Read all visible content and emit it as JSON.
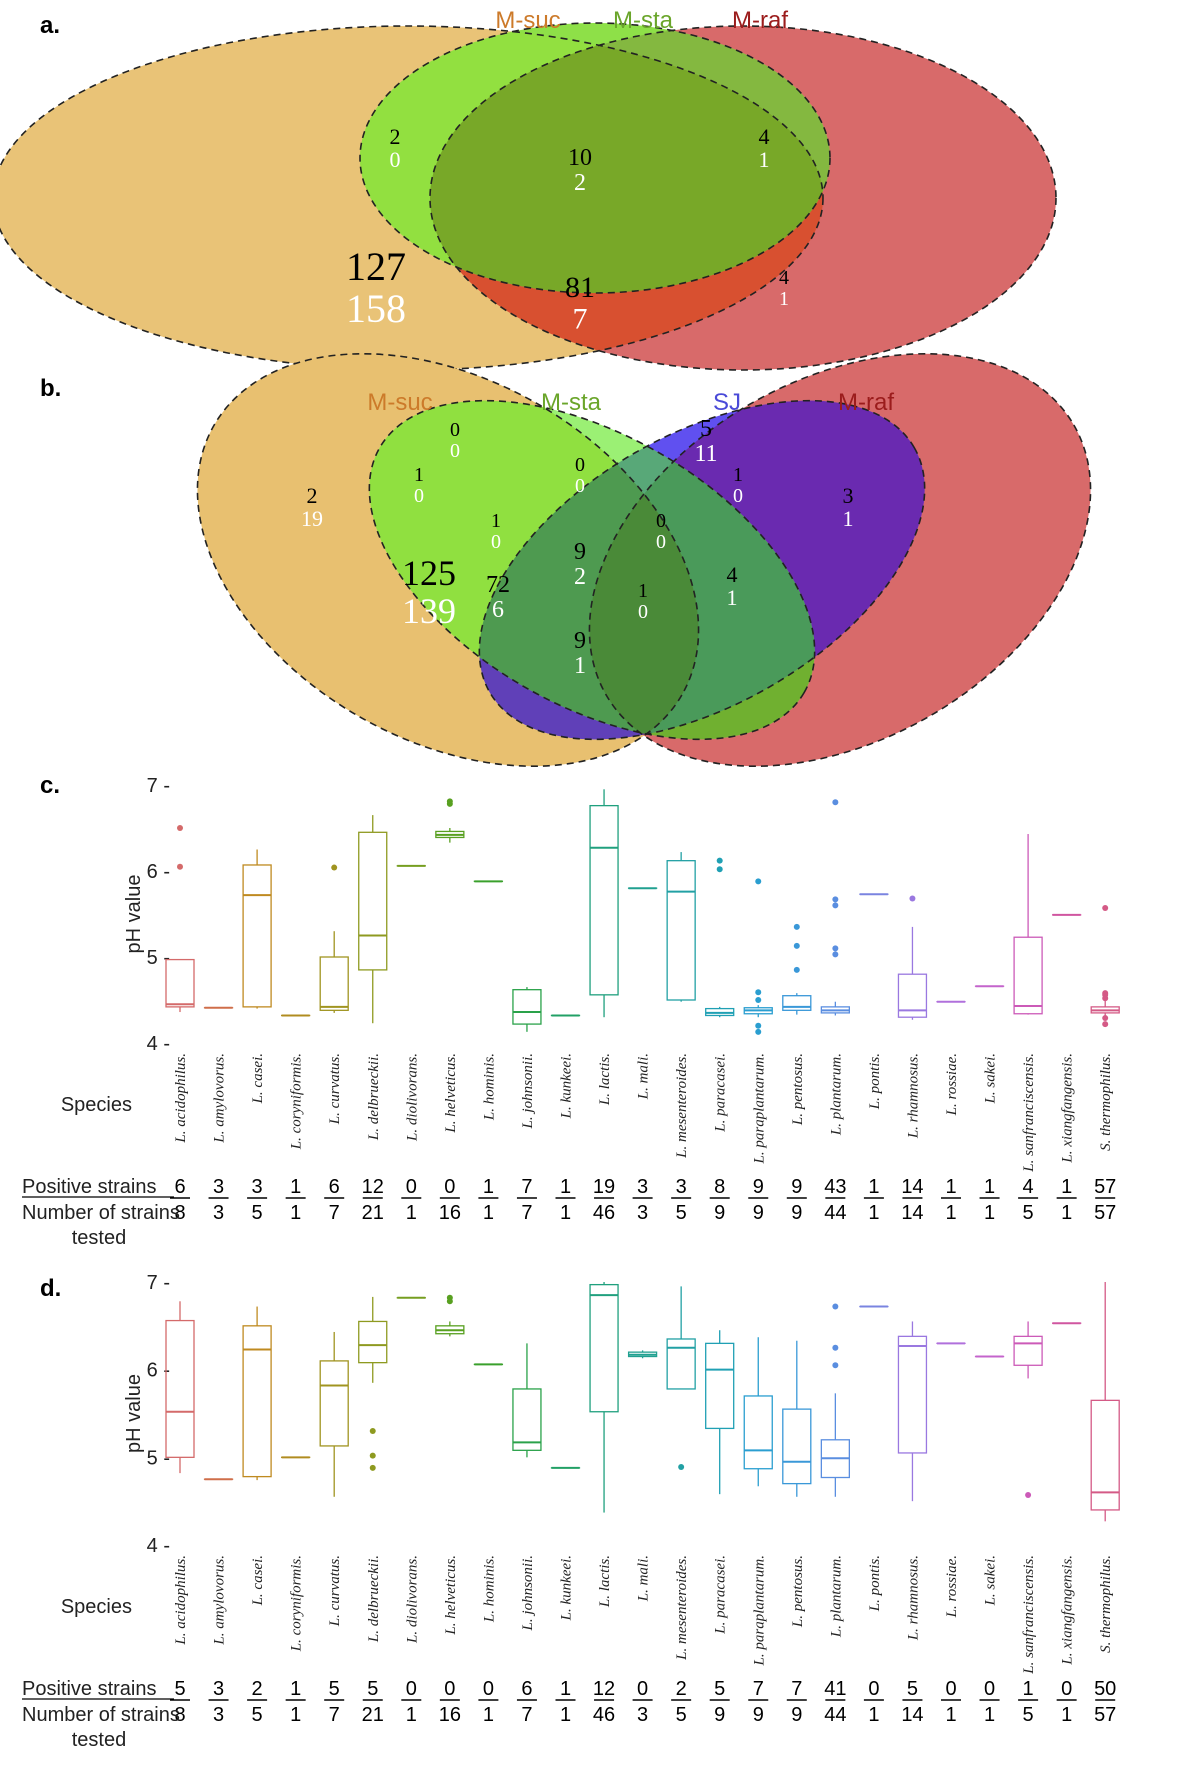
{
  "panels": {
    "a": "a.",
    "b": "b.",
    "c": "c.",
    "d": "d."
  },
  "colors": {
    "m_suc": "#cc7a2a",
    "m_sta": "#6aa52a",
    "m_raf": "#9b1c1c",
    "sj": "#4a4ad8",
    "venn_suc_fill": "#e8c070",
    "venn_sta_fill": "#7ee040",
    "venn_raf_fill": "#d86060",
    "venn_sj_fill": "#4040e8"
  },
  "venn_a": {
    "sets": [
      "M-suc",
      "M-sta",
      "M-raf"
    ],
    "regions": [
      {
        "id": "sta-only",
        "black": "2",
        "white": "0"
      },
      {
        "id": "suc-sta-raf",
        "black": "10",
        "white": "2"
      },
      {
        "id": "sta-raf",
        "black": "4",
        "white": "1"
      },
      {
        "id": "suc-only",
        "black": "127",
        "white": "158"
      },
      {
        "id": "suc-raf",
        "black": "81",
        "white": "7"
      },
      {
        "id": "raf-only",
        "black": "4",
        "white": "1"
      }
    ]
  },
  "venn_b": {
    "sets": [
      "M-suc",
      "M-sta",
      "SJ",
      "M-raf"
    ],
    "regions": [
      {
        "id": "sta-only",
        "black": "0",
        "white": "0"
      },
      {
        "id": "sj-only",
        "black": "5",
        "white": "11"
      },
      {
        "id": "suc-sta",
        "black": "1",
        "white": "0"
      },
      {
        "id": "sta-sj",
        "black": "0",
        "white": "0"
      },
      {
        "id": "sj-raf",
        "black": "1",
        "white": "0"
      },
      {
        "id": "suc-only",
        "black": "2",
        "white": "19"
      },
      {
        "id": "suc-sta-sj",
        "black": "1",
        "white": "0"
      },
      {
        "id": "sta-sj-raf",
        "black": "0",
        "white": "0"
      },
      {
        "id": "raf-only",
        "black": "3",
        "white": "1"
      },
      {
        "id": "suc-sj",
        "black": "125",
        "white": "139"
      },
      {
        "id": "suc-sj-raf",
        "black": "72",
        "white": "6"
      },
      {
        "id": "all",
        "black": "9",
        "white": "2"
      },
      {
        "id": "suc-sta-raf",
        "black": "1",
        "white": "0"
      },
      {
        "id": "sta-raf",
        "black": "4",
        "white": "1"
      },
      {
        "id": "suc-raf",
        "black": "9",
        "white": "1"
      }
    ]
  },
  "labels": {
    "ylabel": "pH value",
    "species": "Species",
    "positive": "Positive strains",
    "tested_1": "Number of strains",
    "tested_2": "tested"
  },
  "chart_data": [
    {
      "type": "box",
      "panel": "c",
      "ylabel": "pH value",
      "ylim": [
        4,
        7
      ],
      "yticks": [
        4,
        5,
        6,
        7
      ],
      "categories": [
        "L. acidophilus.",
        "L. amylovorus.",
        "L. casei.",
        "L. coryniformis.",
        "L. curvatus.",
        "L. delbrueckii.",
        "L. diolivorans.",
        "L. helveticus.",
        "L. hominis.",
        "L. johnsonii.",
        "L. kunkeei.",
        "L. lactis.",
        "L. mali.",
        "L. mesenteroides.",
        "L. paracasei.",
        "L. paraplantarum.",
        "L. pentosus.",
        "L. plantarum.",
        "L. pontis.",
        "L. rhamnosus.",
        "L. rossiae.",
        "L. sakei.",
        "L. sanfranciscensis.",
        "L. xiangfangensis.",
        "S. thermophilus."
      ],
      "series": [
        {
          "min": 4.36,
          "q1": 4.42,
          "median": 4.45,
          "q3": 4.97,
          "max": 4.97,
          "outliers": [
            6.05,
            6.5
          ]
        },
        {
          "min": 4.41,
          "q1": 4.41,
          "median": 4.41,
          "q3": 4.41,
          "max": 4.41,
          "outliers": []
        },
        {
          "min": 4.4,
          "q1": 4.42,
          "median": 5.72,
          "q3": 6.07,
          "max": 6.25,
          "outliers": []
        },
        {
          "min": 4.32,
          "q1": 4.32,
          "median": 4.32,
          "q3": 4.32,
          "max": 4.32,
          "outliers": []
        },
        {
          "min": 4.35,
          "q1": 4.38,
          "median": 4.42,
          "q3": 5.0,
          "max": 5.3,
          "outliers": [
            6.04
          ]
        },
        {
          "min": 4.23,
          "q1": 4.85,
          "median": 5.25,
          "q3": 6.45,
          "max": 6.65,
          "outliers": []
        },
        {
          "min": 6.06,
          "q1": 6.06,
          "median": 6.06,
          "q3": 6.06,
          "max": 6.06,
          "outliers": []
        },
        {
          "min": 6.33,
          "q1": 6.39,
          "median": 6.42,
          "q3": 6.46,
          "max": 6.5,
          "outliers": [
            6.78,
            6.81
          ]
        },
        {
          "min": 5.88,
          "q1": 5.88,
          "median": 5.88,
          "q3": 5.88,
          "max": 5.88,
          "outliers": []
        },
        {
          "min": 4.13,
          "q1": 4.22,
          "median": 4.36,
          "q3": 4.62,
          "max": 4.65,
          "outliers": []
        },
        {
          "min": 4.32,
          "q1": 4.32,
          "median": 4.32,
          "q3": 4.32,
          "max": 4.32,
          "outliers": []
        },
        {
          "min": 4.3,
          "q1": 4.56,
          "median": 6.27,
          "q3": 6.76,
          "max": 6.95,
          "outliers": []
        },
        {
          "min": 5.8,
          "q1": 5.8,
          "median": 5.8,
          "q3": 5.8,
          "max": 5.8,
          "outliers": []
        },
        {
          "min": 4.48,
          "q1": 4.5,
          "median": 5.76,
          "q3": 6.12,
          "max": 6.22,
          "outliers": []
        },
        {
          "min": 4.3,
          "q1": 4.32,
          "median": 4.35,
          "q3": 4.4,
          "max": 4.42,
          "outliers": [
            6.02,
            6.12
          ]
        },
        {
          "min": 4.3,
          "q1": 4.34,
          "median": 4.38,
          "q3": 4.41,
          "max": 4.44,
          "outliers": [
            4.13,
            4.2,
            4.5,
            4.59,
            5.88
          ]
        },
        {
          "min": 4.33,
          "q1": 4.38,
          "median": 4.42,
          "q3": 4.55,
          "max": 4.58,
          "outliers": [
            4.85,
            5.13,
            5.35
          ]
        },
        {
          "min": 4.32,
          "q1": 4.35,
          "median": 4.38,
          "q3": 4.42,
          "max": 4.48,
          "outliers": [
            5.03,
            5.1,
            5.6,
            5.67,
            6.8
          ]
        },
        {
          "min": 5.73,
          "q1": 5.73,
          "median": 5.73,
          "q3": 5.73,
          "max": 5.73,
          "outliers": []
        },
        {
          "min": 4.27,
          "q1": 4.3,
          "median": 4.38,
          "q3": 4.8,
          "max": 5.35,
          "outliers": [
            5.68
          ]
        },
        {
          "min": 4.48,
          "q1": 4.48,
          "median": 4.48,
          "q3": 4.48,
          "max": 4.48,
          "outliers": []
        },
        {
          "min": 4.66,
          "q1": 4.66,
          "median": 4.66,
          "q3": 4.66,
          "max": 4.66,
          "outliers": []
        },
        {
          "min": 4.33,
          "q1": 4.34,
          "median": 4.43,
          "q3": 5.23,
          "max": 6.43,
          "outliers": []
        },
        {
          "min": 5.49,
          "q1": 5.49,
          "median": 5.49,
          "q3": 5.49,
          "max": 5.49,
          "outliers": []
        },
        {
          "min": 4.32,
          "q1": 4.35,
          "median": 4.38,
          "q3": 4.42,
          "max": 4.5,
          "outliers": [
            4.22,
            4.29,
            4.52,
            4.56,
            4.58,
            5.57
          ]
        }
      ],
      "positive": [
        "6",
        "3",
        "3",
        "1",
        "6",
        "12",
        "0",
        "0",
        "1",
        "7",
        "1",
        "19",
        "3",
        "3",
        "8",
        "9",
        "9",
        "43",
        "1",
        "14",
        "1",
        "1",
        "4",
        "1",
        "57"
      ],
      "tested": [
        "8",
        "3",
        "5",
        "1",
        "7",
        "21",
        "1",
        "16",
        "1",
        "7",
        "1",
        "46",
        "3",
        "5",
        "9",
        "9",
        "9",
        "44",
        "1",
        "14",
        "1",
        "1",
        "5",
        "1",
        "57"
      ]
    },
    {
      "type": "box",
      "panel": "d",
      "ylabel": "pH value",
      "ylim": [
        4,
        7
      ],
      "yticks": [
        4,
        5,
        6,
        7
      ],
      "categories": [
        "L. acidophilus.",
        "L. amylovorus.",
        "L. casei.",
        "L. coryniformis.",
        "L. curvatus.",
        "L. delbrueckii.",
        "L. diolivorans.",
        "L. helveticus.",
        "L. hominis.",
        "L. johnsonii.",
        "L. kunkeei.",
        "L. lactis.",
        "L. mali.",
        "L. mesenteroides.",
        "L. paracasei.",
        "L. paraplantarum.",
        "L. pentosus.",
        "L. plantarum.",
        "L. pontis.",
        "L. rhamnosus.",
        "L. rossiae.",
        "L. sakei.",
        "L. sanfranciscensis.",
        "L. xiangfangensis.",
        "S. thermophilus."
      ],
      "series": [
        {
          "min": 4.82,
          "q1": 5.0,
          "median": 5.52,
          "q3": 6.56,
          "max": 6.78,
          "outliers": []
        },
        {
          "min": 4.75,
          "q1": 4.75,
          "median": 4.75,
          "q3": 4.75,
          "max": 4.75,
          "outliers": []
        },
        {
          "min": 4.74,
          "q1": 4.78,
          "median": 6.23,
          "q3": 6.5,
          "max": 6.72,
          "outliers": []
        },
        {
          "min": 5.0,
          "q1": 5.0,
          "median": 5.0,
          "q3": 5.0,
          "max": 5.0,
          "outliers": []
        },
        {
          "min": 4.55,
          "q1": 5.13,
          "median": 5.82,
          "q3": 6.1,
          "max": 6.43,
          "outliers": []
        },
        {
          "min": 5.85,
          "q1": 6.08,
          "median": 6.28,
          "q3": 6.55,
          "max": 6.83,
          "outliers": [
            4.88,
            5.02,
            5.3
          ]
        },
        {
          "min": 6.82,
          "q1": 6.82,
          "median": 6.82,
          "q3": 6.82,
          "max": 6.82,
          "outliers": []
        },
        {
          "min": 6.38,
          "q1": 6.41,
          "median": 6.45,
          "q3": 6.5,
          "max": 6.55,
          "outliers": [
            6.78,
            6.82
          ]
        },
        {
          "min": 6.06,
          "q1": 6.06,
          "median": 6.06,
          "q3": 6.06,
          "max": 6.06,
          "outliers": []
        },
        {
          "min": 5.0,
          "q1": 5.08,
          "median": 5.17,
          "q3": 5.78,
          "max": 6.3,
          "outliers": []
        },
        {
          "min": 4.88,
          "q1": 4.88,
          "median": 4.88,
          "q3": 4.88,
          "max": 4.88,
          "outliers": []
        },
        {
          "min": 4.37,
          "q1": 5.52,
          "median": 6.85,
          "q3": 6.97,
          "max": 7.0,
          "outliers": []
        },
        {
          "min": 6.13,
          "q1": 6.15,
          "median": 6.17,
          "q3": 6.2,
          "max": 6.22,
          "outliers": []
        },
        {
          "min": 5.78,
          "q1": 5.78,
          "median": 6.25,
          "q3": 6.35,
          "max": 6.95,
          "outliers": [
            4.89
          ]
        },
        {
          "min": 4.58,
          "q1": 5.33,
          "median": 6.0,
          "q3": 6.3,
          "max": 6.45,
          "outliers": []
        },
        {
          "min": 4.67,
          "q1": 4.87,
          "median": 5.08,
          "q3": 5.7,
          "max": 6.37,
          "outliers": []
        },
        {
          "min": 4.55,
          "q1": 4.7,
          "median": 4.95,
          "q3": 5.55,
          "max": 6.33,
          "outliers": []
        },
        {
          "min": 4.55,
          "q1": 4.77,
          "median": 4.99,
          "q3": 5.2,
          "max": 5.73,
          "outliers": [
            6.05,
            6.25,
            6.72
          ]
        },
        {
          "min": 6.72,
          "q1": 6.72,
          "median": 6.72,
          "q3": 6.72,
          "max": 6.72,
          "outliers": []
        },
        {
          "min": 4.5,
          "q1": 5.05,
          "median": 6.27,
          "q3": 6.38,
          "max": 6.55,
          "outliers": []
        },
        {
          "min": 6.3,
          "q1": 6.3,
          "median": 6.3,
          "q3": 6.3,
          "max": 6.3,
          "outliers": []
        },
        {
          "min": 6.15,
          "q1": 6.15,
          "median": 6.15,
          "q3": 6.15,
          "max": 6.15,
          "outliers": []
        },
        {
          "min": 5.9,
          "q1": 6.05,
          "median": 6.3,
          "q3": 6.38,
          "max": 6.55,
          "outliers": [
            4.57
          ]
        },
        {
          "min": 6.53,
          "q1": 6.53,
          "median": 6.53,
          "q3": 6.53,
          "max": 6.53,
          "outliers": []
        },
        {
          "min": 4.27,
          "q1": 4.4,
          "median": 4.6,
          "q3": 5.65,
          "max": 7.0,
          "outliers": []
        }
      ],
      "positive": [
        "5",
        "3",
        "2",
        "1",
        "5",
        "5",
        "0",
        "0",
        "0",
        "6",
        "1",
        "12",
        "0",
        "2",
        "5",
        "7",
        "7",
        "41",
        "0",
        "5",
        "0",
        "0",
        "1",
        "0",
        "50"
      ],
      "tested": [
        "8",
        "3",
        "5",
        "1",
        "7",
        "21",
        "1",
        "16",
        "1",
        "7",
        "1",
        "46",
        "3",
        "5",
        "9",
        "9",
        "9",
        "44",
        "1",
        "14",
        "1",
        "1",
        "5",
        "1",
        "57"
      ]
    }
  ]
}
